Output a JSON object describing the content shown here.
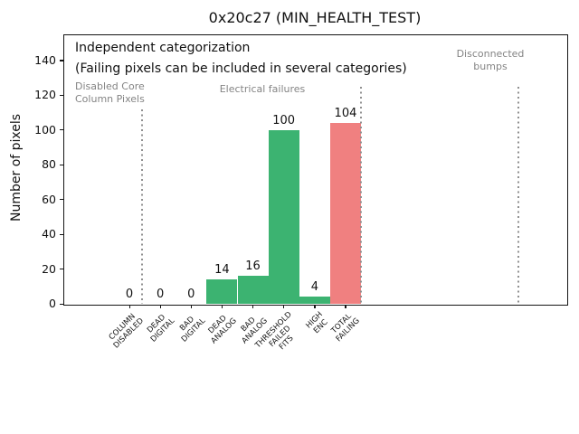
{
  "title": "0x20c27 (MIN_HEALTH_TEST)",
  "chart_data": {
    "type": "bar",
    "title": "0x20c27 (MIN_HEALTH_TEST)",
    "xlabel": "",
    "ylabel": "Number of pixels",
    "ylim": [
      0,
      155
    ],
    "yticks": [
      0,
      20,
      40,
      60,
      80,
      100,
      120,
      140
    ],
    "grid": false,
    "legend_position": "none",
    "categories": [
      "COLUMN\nDISABLED",
      "DEAD\nDIGITAL",
      "BAD\nDIGITAL",
      "DEAD\nANALOG",
      "BAD\nANALOG",
      "THRESHOLD\nFAILED\nFITS",
      "HIGH\nENC",
      "TOTAL\nFAILING"
    ],
    "values": [
      0,
      0,
      0,
      14,
      16,
      100,
      4,
      104
    ],
    "bar_value_labels": [
      "0",
      "0",
      "0",
      "14",
      "16",
      "100",
      "4",
      "104"
    ],
    "bar_colors": [
      "#3cb371",
      "#3cb371",
      "#3cb371",
      "#3cb371",
      "#3cb371",
      "#3cb371",
      "#3cb371",
      "#f08080"
    ],
    "section_dividers": [
      {
        "x": 0.4,
        "ymax": 112
      },
      {
        "x": 7.5,
        "ymax": 125
      },
      {
        "x": 12.6,
        "ymax": 125
      }
    ],
    "annotations": {
      "independent_1": "Independent categorization",
      "independent_2": "(Failing pixels can be included in several categories)",
      "disabled_core": "Disabled Core\nColumn Pixels",
      "electrical": "Electrical failures",
      "disconnected": "Disconnected\nbumps"
    },
    "colors": {
      "pass_green": "#3cb371",
      "fail_red": "#f08080",
      "divider_grey": "#909090",
      "annotation_grey": "#848484",
      "text_black": "#111111"
    }
  }
}
